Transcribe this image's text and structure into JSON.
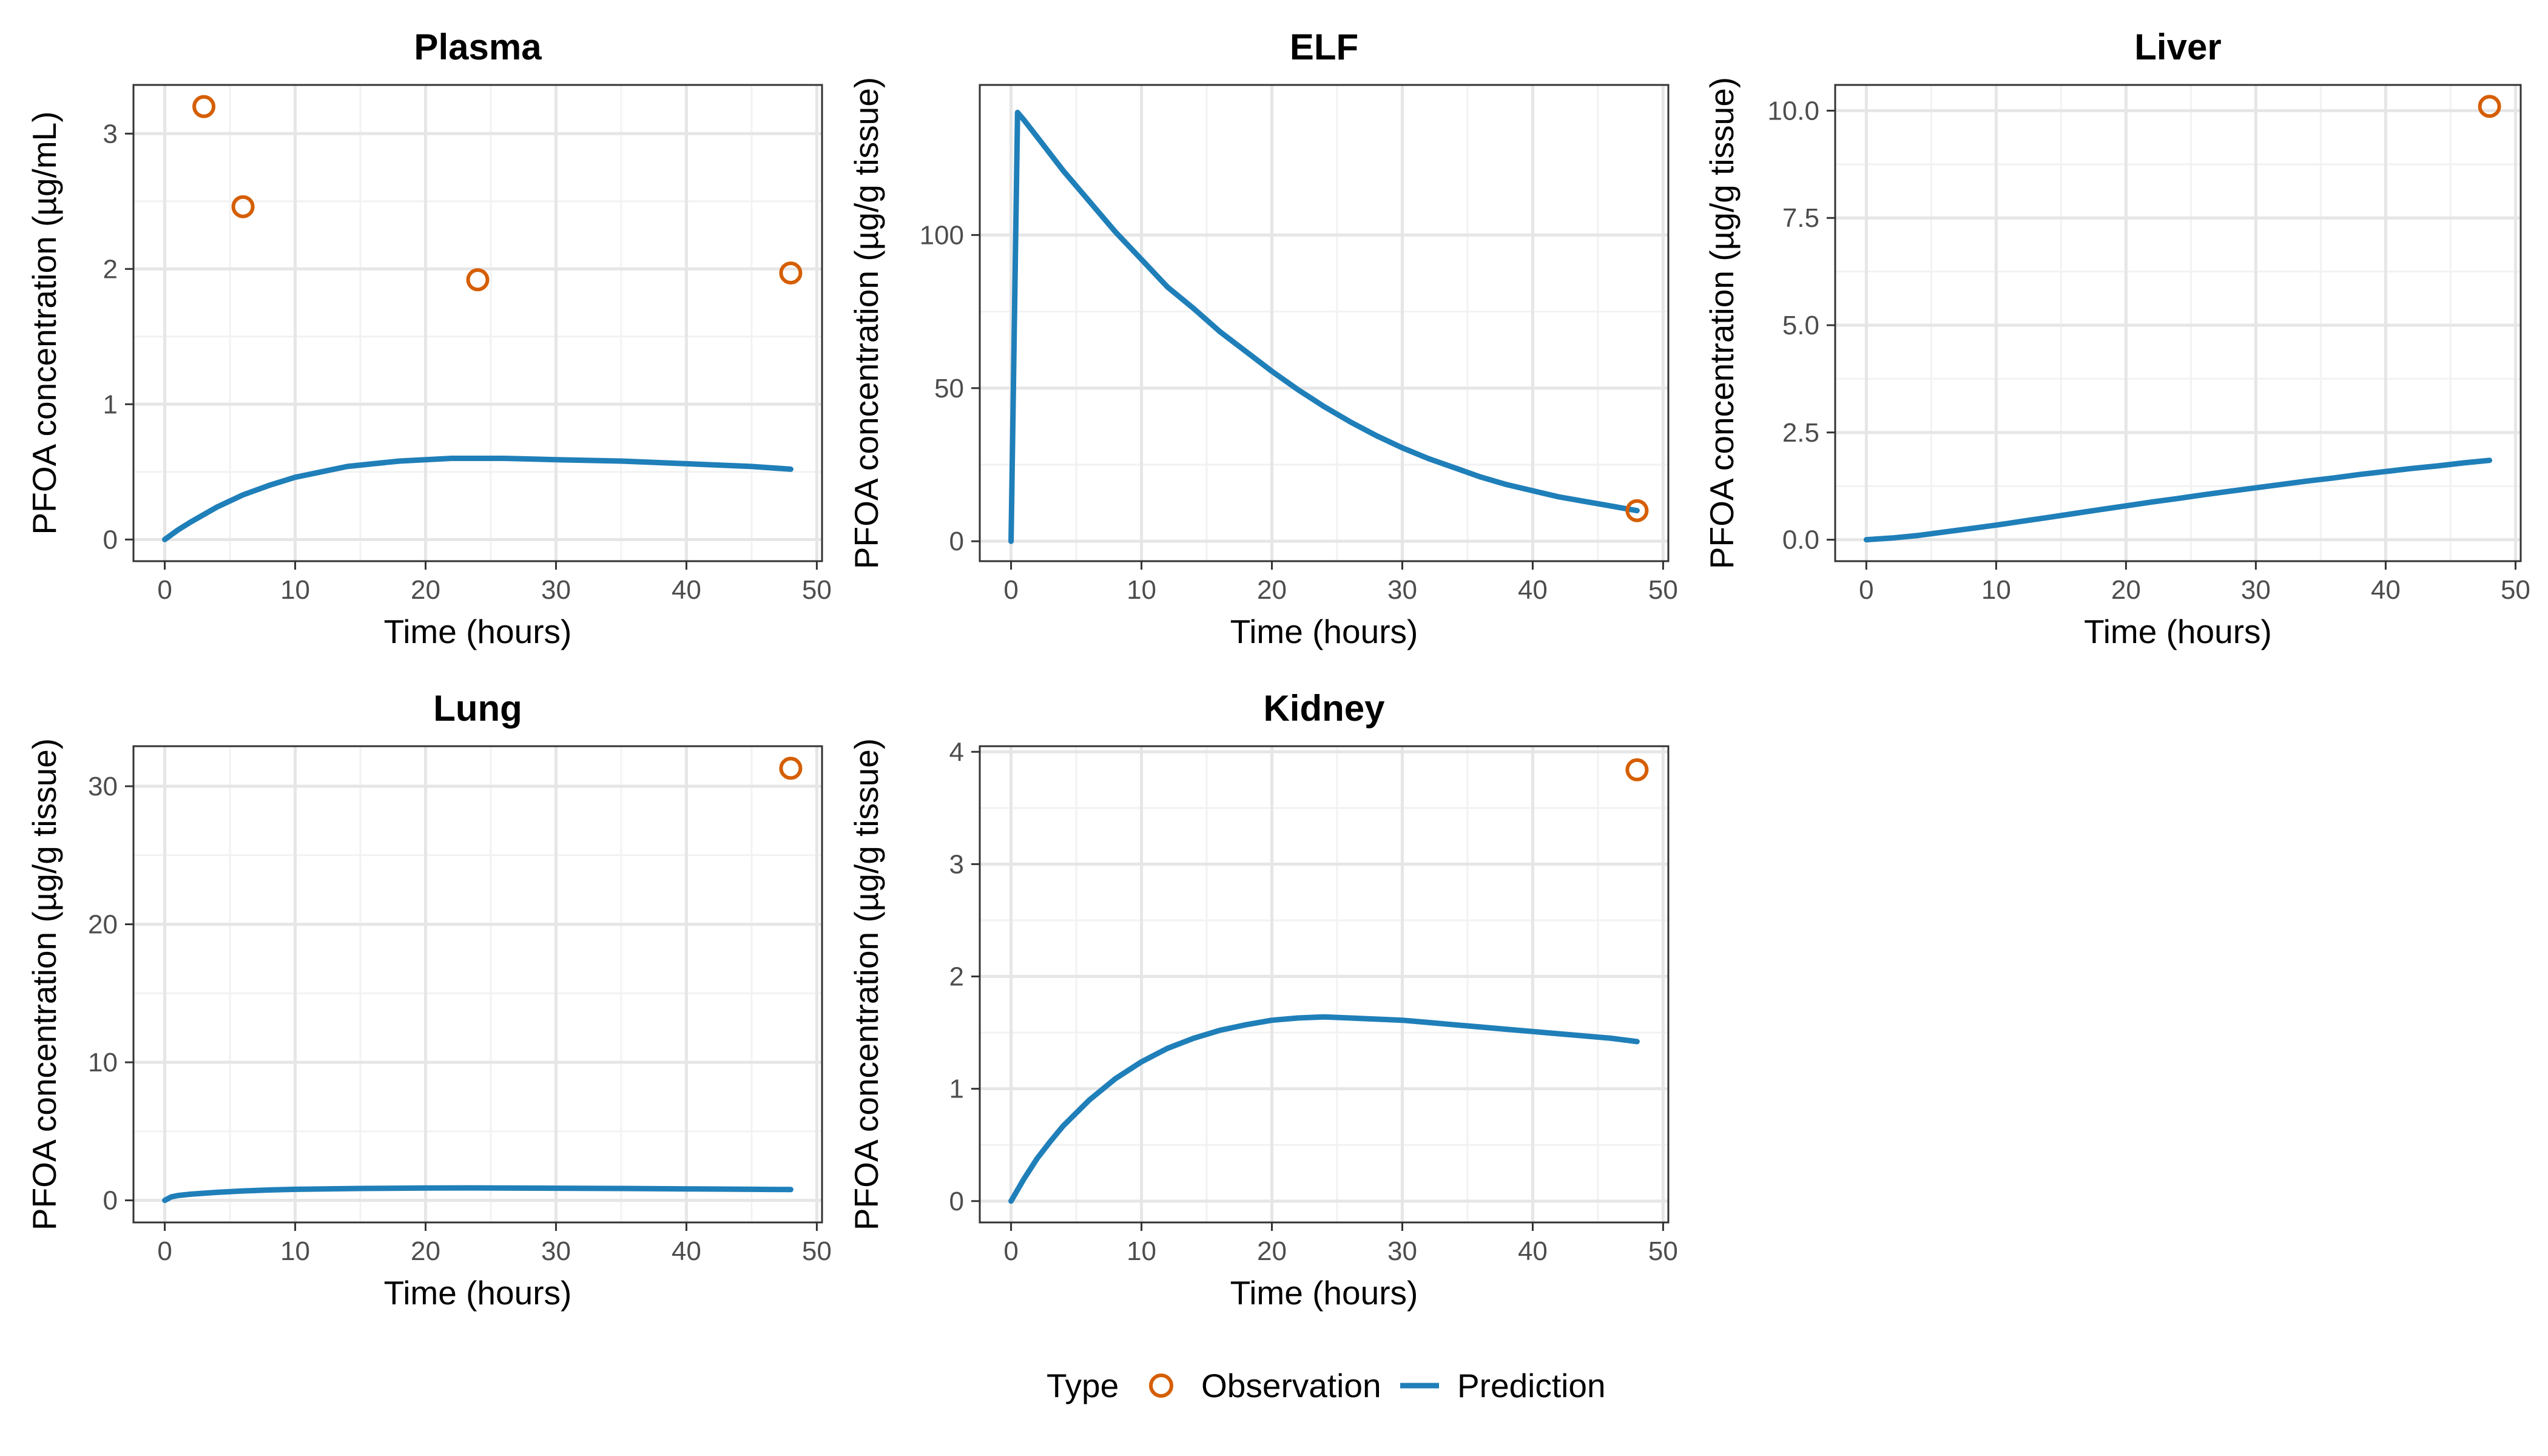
{
  "legend": {
    "title": "Type",
    "items": [
      {
        "label": "Observation",
        "kind": "point",
        "color": "#D55E00"
      },
      {
        "label": "Prediction",
        "kind": "line",
        "color": "#1F7FB9"
      }
    ]
  },
  "colors": {
    "observation": "#D55E00",
    "prediction": "#1F7FB9",
    "grid": "#e6e6e6",
    "frame": "#333333"
  },
  "chart_data": [
    {
      "type": "line",
      "title": "Plasma",
      "xlabel": "Time (hours)",
      "ylabel": "PFOA concentration (µg/mL)",
      "xlim": [
        -2.4,
        50.4
      ],
      "ylim": [
        -0.16,
        3.36
      ],
      "xticks": [
        0,
        10,
        20,
        30,
        40,
        50
      ],
      "yticks": [
        0,
        1,
        2,
        3
      ],
      "ytick_labels": [
        "0",
        "1",
        "2",
        "3"
      ],
      "grid": true,
      "series": [
        {
          "name": "Prediction",
          "x": [
            0,
            1,
            2,
            4,
            6,
            8,
            10,
            12,
            14,
            16,
            18,
            20,
            22,
            24,
            26,
            30,
            35,
            40,
            45,
            48
          ],
          "y": [
            0,
            0.07,
            0.13,
            0.24,
            0.33,
            0.4,
            0.46,
            0.5,
            0.54,
            0.56,
            0.58,
            0.59,
            0.6,
            0.6,
            0.6,
            0.59,
            0.58,
            0.56,
            0.54,
            0.52
          ]
        },
        {
          "name": "Observation",
          "x": [
            3,
            6,
            24,
            48
          ],
          "y": [
            3.2,
            2.46,
            1.92,
            1.97
          ]
        }
      ]
    },
    {
      "type": "line",
      "title": "ELF",
      "xlabel": "Time (hours)",
      "ylabel": "PFOA concentration (µg/g tissue)",
      "xlim": [
        -2.4,
        50.4
      ],
      "ylim": [
        -6.5,
        149
      ],
      "xticks": [
        0,
        10,
        20,
        30,
        40,
        50
      ],
      "yticks": [
        0,
        50,
        100
      ],
      "ytick_labels": [
        "0",
        "50",
        "100"
      ],
      "grid": true,
      "series": [
        {
          "name": "Prediction",
          "x": [
            0,
            0.5,
            1,
            2,
            4,
            6,
            8,
            10,
            12,
            14,
            16,
            18,
            20,
            22,
            24,
            26,
            28,
            30,
            32,
            34,
            36,
            38,
            40,
            42,
            44,
            46,
            48
          ],
          "y": [
            0,
            140,
            137.5,
            132,
            121,
            111,
            101,
            92,
            83,
            76,
            68.5,
            62,
            55.5,
            49.5,
            44,
            39,
            34.5,
            30.5,
            27,
            24,
            21,
            18.5,
            16.5,
            14.5,
            13,
            11.5,
            10
          ]
        },
        {
          "name": "Observation",
          "x": [
            48
          ],
          "y": [
            10
          ]
        }
      ]
    },
    {
      "type": "line",
      "title": "Liver",
      "xlabel": "Time (hours)",
      "ylabel": "PFOA concentration (µg/g tissue)",
      "xlim": [
        -2.4,
        50.4
      ],
      "ylim": [
        -0.5,
        10.6
      ],
      "xticks": [
        0,
        10,
        20,
        30,
        40,
        50
      ],
      "yticks": [
        0,
        2.5,
        5,
        7.5,
        10
      ],
      "ytick_labels": [
        "0.0",
        "2.5",
        "5.0",
        "7.5",
        "10.0"
      ],
      "grid": true,
      "series": [
        {
          "name": "Prediction",
          "x": [
            0,
            2,
            4,
            6,
            8,
            10,
            12,
            14,
            16,
            18,
            20,
            22,
            24,
            26,
            28,
            30,
            32,
            34,
            36,
            38,
            40,
            42,
            44,
            46,
            48
          ],
          "y": [
            0,
            0.04,
            0.1,
            0.18,
            0.26,
            0.34,
            0.43,
            0.52,
            0.61,
            0.7,
            0.79,
            0.88,
            0.96,
            1.05,
            1.13,
            1.21,
            1.29,
            1.37,
            1.44,
            1.52,
            1.59,
            1.66,
            1.72,
            1.79,
            1.85
          ]
        },
        {
          "name": "Observation",
          "x": [
            48
          ],
          "y": [
            10.1
          ]
        }
      ]
    },
    {
      "type": "line",
      "title": "Lung",
      "xlabel": "Time (hours)",
      "ylabel": "PFOA concentration (µg/g tissue)",
      "xlim": [
        -2.4,
        50.4
      ],
      "ylim": [
        -1.6,
        32.9
      ],
      "xticks": [
        0,
        10,
        20,
        30,
        40,
        50
      ],
      "yticks": [
        0,
        10,
        20,
        30
      ],
      "ytick_labels": [
        "0",
        "10",
        "20",
        "30"
      ],
      "grid": true,
      "series": [
        {
          "name": "Prediction",
          "x": [
            0,
            0.5,
            1,
            2,
            4,
            6,
            8,
            10,
            15,
            20,
            24,
            30,
            35,
            40,
            45,
            48
          ],
          "y": [
            0,
            0.25,
            0.35,
            0.45,
            0.58,
            0.68,
            0.75,
            0.8,
            0.86,
            0.89,
            0.9,
            0.88,
            0.86,
            0.83,
            0.8,
            0.78
          ]
        },
        {
          "name": "Observation",
          "x": [
            48
          ],
          "y": [
            31.3
          ]
        }
      ]
    },
    {
      "type": "line",
      "title": "Kidney",
      "xlabel": "Time (hours)",
      "ylabel": "PFOA concentration (µg/g tissue)",
      "xlim": [
        -2.4,
        50.4
      ],
      "ylim": [
        -0.19,
        4.05
      ],
      "xticks": [
        0,
        10,
        20,
        30,
        40,
        50
      ],
      "yticks": [
        0,
        1,
        2,
        3,
        4
      ],
      "ytick_labels": [
        "0",
        "1",
        "2",
        "3",
        "4"
      ],
      "grid": true,
      "series": [
        {
          "name": "Prediction",
          "x": [
            0,
            1,
            2,
            3,
            4,
            6,
            8,
            10,
            12,
            14,
            16,
            18,
            20,
            22,
            24,
            26,
            28,
            30,
            32,
            34,
            36,
            38,
            40,
            42,
            44,
            46,
            48
          ],
          "y": [
            0,
            0.2,
            0.38,
            0.53,
            0.67,
            0.9,
            1.09,
            1.24,
            1.36,
            1.45,
            1.52,
            1.57,
            1.61,
            1.63,
            1.64,
            1.63,
            1.62,
            1.61,
            1.59,
            1.57,
            1.55,
            1.53,
            1.51,
            1.49,
            1.47,
            1.45,
            1.42
          ]
        },
        {
          "name": "Observation",
          "x": [
            48
          ],
          "y": [
            3.84
          ]
        }
      ]
    }
  ]
}
